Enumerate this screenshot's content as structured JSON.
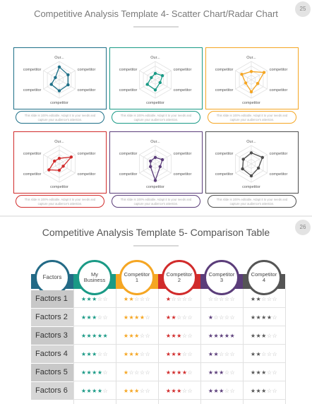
{
  "slide1": {
    "number": "25",
    "title": "Competitive Analysis Template 4- Scatter Chart/Radar Chart",
    "cards": [
      {
        "color": "#1e7088",
        "axis_labels": [
          "Our...",
          "competitor",
          "competitor",
          "competitor",
          "competitor",
          "competitor"
        ],
        "values": [
          0.7,
          0.55,
          0.55,
          0.6,
          0.5,
          0.25
        ],
        "caption": "This slide is 100% editable. Adapt it to your needs and capture your audience's attention."
      },
      {
        "color": "#1a9a86",
        "axis_labels": [
          "Our...",
          "competitor",
          "competitor",
          "competitor",
          "competitor",
          "competitor"
        ],
        "values": [
          0.35,
          0.45,
          0.3,
          0.55,
          0.5,
          0.25
        ],
        "caption": "This slide is 100% editable. Adapt it to your needs and capture your audience's attention."
      },
      {
        "color": "#f5a623",
        "axis_labels": [
          "Our...",
          "competitor",
          "competitor",
          "competitor",
          "competitor",
          "competitor"
        ],
        "values": [
          0.45,
          0.8,
          0.4,
          0.65,
          0.35,
          0.6
        ],
        "caption": "This slide is 100% editable. Adapt it to your needs and capture your audience's attention."
      },
      {
        "color": "#d12b2b",
        "axis_labels": [
          "Our...",
          "competitor",
          "competitor",
          "competitor",
          "competitor",
          "competitor"
        ],
        "values": [
          0.3,
          0.75,
          0.25,
          0.35,
          0.65,
          0.3
        ],
        "caption": "This slide is 100% editable. Adapt it to your needs and capture your audience's attention."
      },
      {
        "color": "#5b3d7a",
        "axis_labels": [
          "Our...",
          "competitor",
          "competitor",
          "competitor",
          "competitor",
          "competitor"
        ],
        "values": [
          0.35,
          0.45,
          0.3,
          0.9,
          0.3,
          0.3
        ],
        "caption": "This slide is 100% editable. Adapt it to your needs and capture your audience's attention."
      },
      {
        "color": "#4d4d4d",
        "axis_labels": [
          "Our...",
          "competitor",
          "competitor",
          "competitor",
          "competitor",
          "competitor"
        ],
        "values": [
          0.6,
          0.7,
          0.45,
          0.65,
          0.55,
          0.5
        ],
        "caption": "This slide is 100% editable. Adapt it to your needs and capture your audience's attention."
      }
    ]
  },
  "slide2": {
    "number": "26",
    "title": "Competitive Analysis Template 5- Comparison Table",
    "columns": [
      {
        "label": "Factors",
        "color": "#236a86"
      },
      {
        "label": "My Business",
        "color": "#1a9a86"
      },
      {
        "label": "Competitor 1",
        "color": "#f5a623"
      },
      {
        "label": "Competitor 2",
        "color": "#d12b2b"
      },
      {
        "label": "Competitor 3",
        "color": "#5b3d7a"
      },
      {
        "label": "Competitor 4",
        "color": "#555555"
      }
    ],
    "rows": [
      {
        "label": "Factors 1",
        "ratings": [
          3,
          2,
          1,
          0,
          2
        ]
      },
      {
        "label": "Factors 2",
        "ratings": [
          3,
          4,
          2,
          1,
          4
        ]
      },
      {
        "label": "Factors 3",
        "ratings": [
          5,
          3,
          3,
          5,
          3
        ]
      },
      {
        "label": "Factors 4",
        "ratings": [
          3,
          3,
          3,
          2,
          2
        ]
      },
      {
        "label": "Factors 5",
        "ratings": [
          4,
          1,
          4,
          3,
          3
        ]
      },
      {
        "label": "Factors 6",
        "ratings": [
          4,
          3,
          3,
          3,
          3
        ]
      }
    ]
  }
}
